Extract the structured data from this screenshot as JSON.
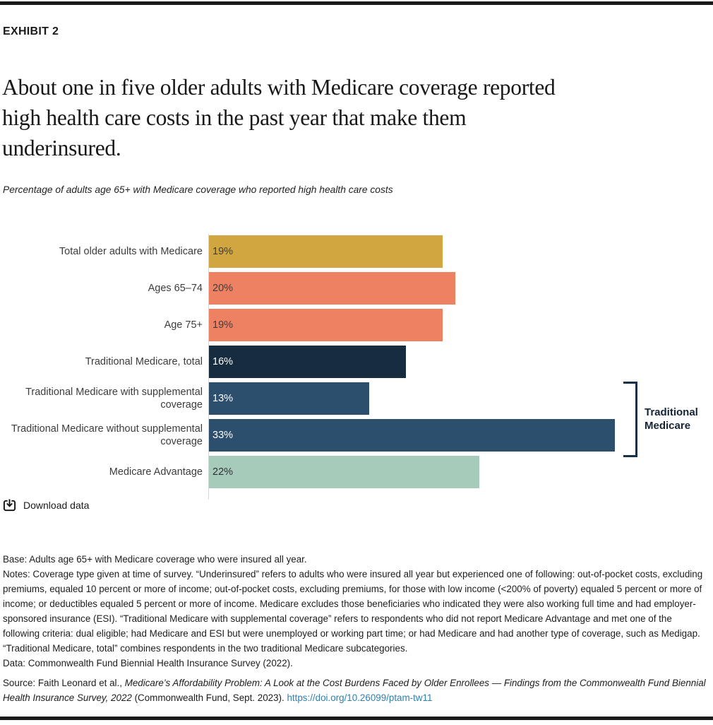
{
  "page": {
    "exhibit_label": "EXHIBIT 2",
    "title_lines": [
      "About one in five older adults with Medicare coverage reported",
      "high health care costs in the past year that make them",
      "underinsured."
    ],
    "subtitle": "Percentage of adults age 65+ with Medicare coverage who reported high health care costs"
  },
  "chart_data": {
    "type": "bar",
    "orientation": "horizontal",
    "title": "About one in five older adults with Medicare coverage reported high health care costs in the past year that make them underinsured.",
    "subtitle": "Percentage of adults age 65+ with Medicare coverage who reported high health care costs",
    "categories": [
      "Total older adults with Medicare",
      "Ages 65–74",
      "Age 75+",
      "Traditional Medicare, total",
      "Traditional Medicare with supplemental coverage",
      "Traditional Medicare without supplemental coverage",
      "Medicare Advantage"
    ],
    "values": [
      19,
      20,
      19,
      16,
      13,
      33,
      22
    ],
    "value_labels": [
      "19%",
      "20%",
      "19%",
      "16%",
      "13%",
      "33%",
      "22%"
    ],
    "bar_colors": [
      "#d1a640",
      "#ee8162",
      "#ee8162",
      "#182c40",
      "#2d4f6e",
      "#2d4f6e",
      "#a6cbbb"
    ],
    "value_label_colors": [
      "#3d3d3d",
      "#3d3d3d",
      "#3d3d3d",
      "#ffffff",
      "#ffffff",
      "#ffffff",
      "#303030"
    ],
    "xlim": [
      0,
      41
    ],
    "grid": "off",
    "legend": "none",
    "annotation": {
      "label_lines": [
        "Traditional",
        "Medicare"
      ],
      "spans_categories": [
        "Traditional Medicare with supplemental coverage",
        "Traditional Medicare without supplemental coverage"
      ]
    }
  },
  "download": {
    "label": "Download data"
  },
  "footnotes": {
    "base": "Base: Adults age 65+ with Medicare coverage who were insured all year.",
    "notes": "Notes: Coverage type given at time of survey. “Underinsured” refers to adults who were insured all year but experienced one of following: out-of-pocket costs, excluding premiums, equaled 10 percent or more of income; out-of-pocket costs, excluding premiums, for those with low income (<200% of poverty) equaled 5 percent or more of income; or deductibles equaled 5 percent or more of income. Medicare excludes those beneficiaries who indicated they were also working full time and had employer-sponsored insurance (ESI). “Traditional Medicare with supplemental coverage” refers to respondents who did not report Medicare Advantage and met one of the following criteria: dual eligible; had Medicare and ESI but were unemployed or working part time; or had Medicare and had another type of coverage, such as Medigap. “Traditional Medicare, total” combines respondents in the two traditional Medicare subcategories.",
    "data": "Data: Commonwealth Fund Biennial Health Insurance Survey (2022)."
  },
  "source": {
    "prefix": "Source: Faith Leonard et al., ",
    "publication": "Medicare’s Affordability Problem: A Look at the Cost Burdens Faced by Older Enrollees — Findings from the Commonwealth Fund Biennial Health Insurance Survey, 2022",
    "suffix": " (Commonwealth Fund, Sept. 2023). ",
    "link": "https://doi.org/10.26099/ptam-tw11"
  },
  "colors": {
    "rule": "#1a1a1a",
    "gold": "#d1a640",
    "salmon": "#ee8162",
    "navy_dark": "#182c40",
    "navy_mid": "#2d4f6e",
    "sage": "#a6cbbb",
    "bracket": "#17314a",
    "link": "#2e80b1",
    "axis": "#d8d8d8"
  }
}
